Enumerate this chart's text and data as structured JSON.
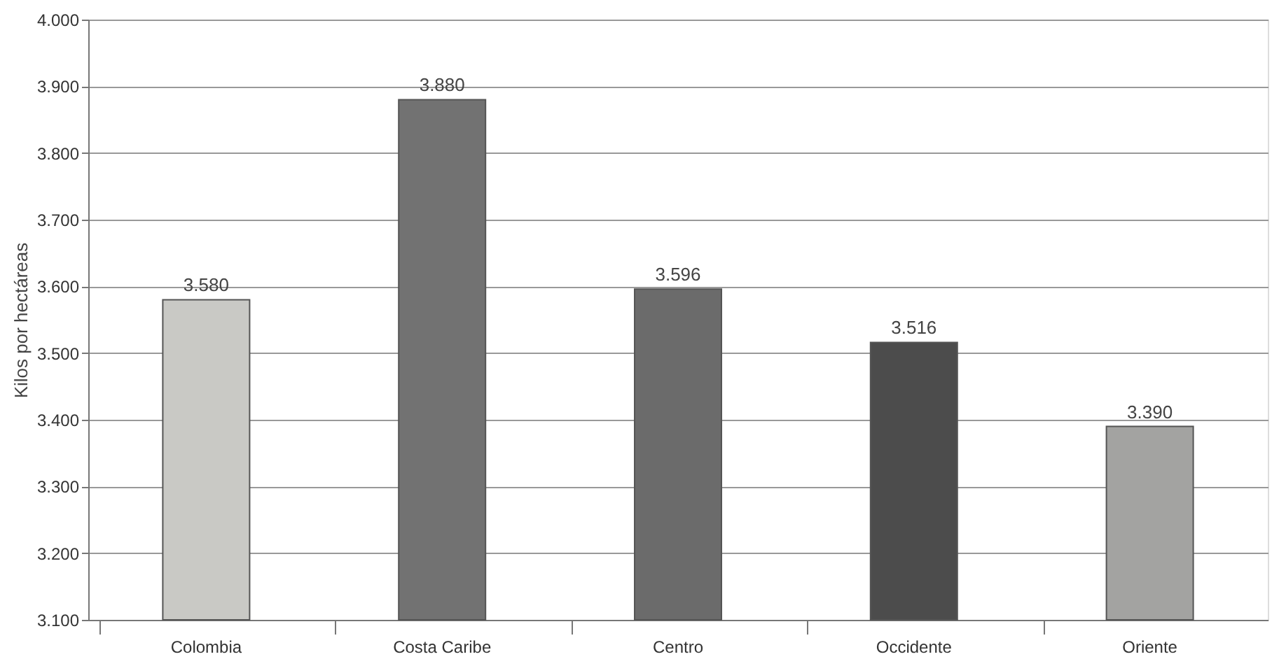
{
  "chart_data": {
    "type": "bar",
    "ylabel": "Kilos por hectáreas",
    "categories": [
      "Colombia",
      "Costa Caribe",
      "Centro",
      "Occidente",
      "Oriente"
    ],
    "values": [
      3580,
      3880,
      3596,
      3516,
      3390
    ],
    "colors": [
      "#c9c9c5",
      "#727272",
      "#6b6b6b",
      "#4c4c4c",
      "#a3a3a1"
    ],
    "value_labels": [
      "3.580",
      "3.880",
      "3.596",
      "3.516",
      "3.390"
    ],
    "ylim": [
      3100,
      4000
    ],
    "yticks": [
      {
        "value": 3100,
        "label": "3.100"
      },
      {
        "value": 3200,
        "label": "3.200"
      },
      {
        "value": 3300,
        "label": "3.300"
      },
      {
        "value": 3400,
        "label": "3.400"
      },
      {
        "value": 3500,
        "label": "3.500"
      },
      {
        "value": 3600,
        "label": "3.600"
      },
      {
        "value": 3700,
        "label": "3.700"
      },
      {
        "value": 3800,
        "label": "3.800"
      },
      {
        "value": 3900,
        "label": "3.900"
      },
      {
        "value": 4000,
        "label": "4.000"
      }
    ],
    "grid": "y"
  }
}
